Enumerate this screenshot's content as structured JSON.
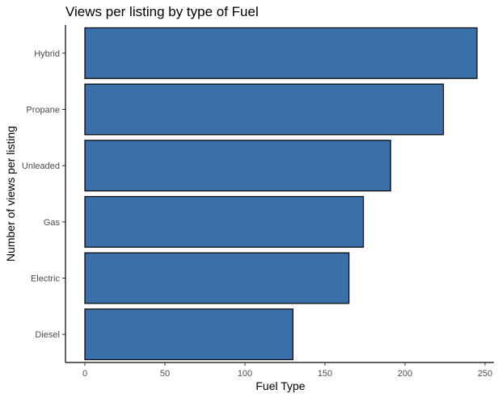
{
  "chart_data": {
    "type": "bar",
    "orientation": "horizontal",
    "title": "Views per listing by type of Fuel",
    "xlabel": "Fuel Type",
    "ylabel": "Number of views per listing",
    "categories": [
      "Hybrid",
      "Propane",
      "Unleaded",
      "Gas",
      "Electric",
      "Diesel"
    ],
    "values": [
      245,
      224,
      191,
      174,
      165,
      130
    ],
    "value_axis_range": [
      0,
      250
    ],
    "value_ticks": [
      0,
      50,
      100,
      150,
      200,
      250
    ],
    "bar_color": "#3a70aa",
    "bar_outline_color": "#000000",
    "grid": false,
    "legend": "none"
  }
}
